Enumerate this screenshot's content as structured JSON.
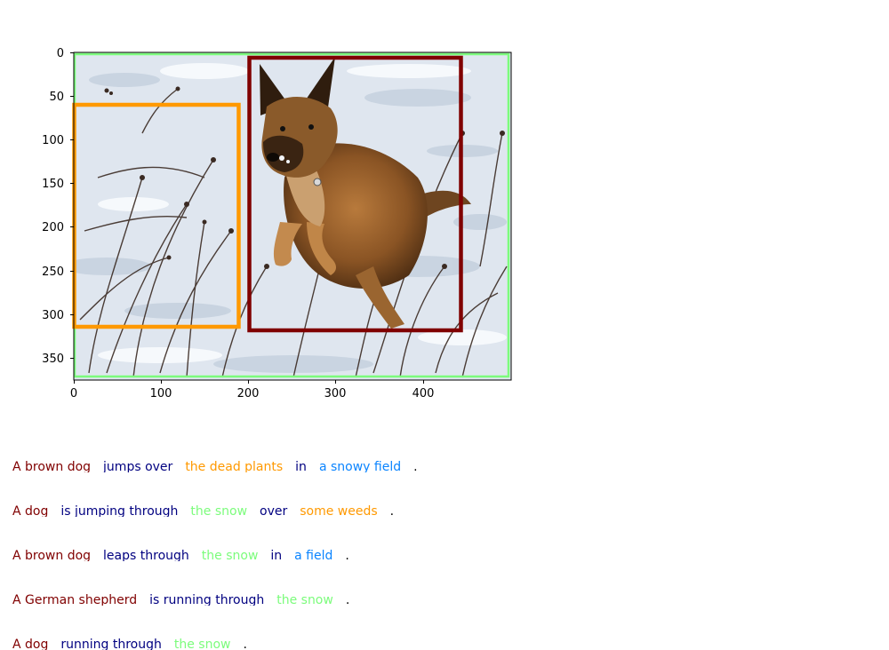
{
  "image_axes": {
    "y_ticks": [
      "0",
      "50",
      "100",
      "150",
      "200",
      "250",
      "300",
      "350"
    ],
    "x_ticks": [
      "0",
      "100",
      "200",
      "300",
      "400"
    ],
    "xlim": [
      0,
      500
    ],
    "ylim": [
      375,
      0
    ]
  },
  "photo": {
    "description_icon": "photo-dog-jumping-in-snow"
  },
  "boxes": [
    {
      "id": "box-green",
      "color": "#7CFC7C",
      "region": [
        0,
        0,
        500,
        375
      ]
    },
    {
      "id": "box-orange",
      "color": "#FF9900",
      "region": [
        0,
        60,
        188,
        315
      ]
    },
    {
      "id": "box-darkred",
      "color": "#800000",
      "region": [
        200,
        6,
        443,
        319
      ]
    }
  ],
  "captions": [
    {
      "phrases": [
        {
          "text": "A brown dog",
          "color": "#800000"
        },
        {
          "text": "jumps over",
          "color": "#000080"
        },
        {
          "text": "the dead plants",
          "color": "#FF9900"
        },
        {
          "text": "in",
          "color": "#000080"
        },
        {
          "text": "a snowy field",
          "color": "#0A84FF"
        },
        {
          "text": ".",
          "color": "#000000"
        }
      ]
    },
    {
      "phrases": [
        {
          "text": "A dog",
          "color": "#800000"
        },
        {
          "text": "is jumping through",
          "color": "#000080"
        },
        {
          "text": "the snow",
          "color": "#7CFC7C"
        },
        {
          "text": "over",
          "color": "#000080"
        },
        {
          "text": "some weeds",
          "color": "#FF9900"
        },
        {
          "text": ".",
          "color": "#000000"
        }
      ]
    },
    {
      "phrases": [
        {
          "text": "A brown dog",
          "color": "#800000"
        },
        {
          "text": "leaps through",
          "color": "#000080"
        },
        {
          "text": "the snow",
          "color": "#7CFC7C"
        },
        {
          "text": "in",
          "color": "#000080"
        },
        {
          "text": "a field",
          "color": "#0A84FF"
        },
        {
          "text": ".",
          "color": "#000000"
        }
      ]
    },
    {
      "phrases": [
        {
          "text": "A German shepherd",
          "color": "#800000"
        },
        {
          "text": "is running through",
          "color": "#000080"
        },
        {
          "text": "the snow",
          "color": "#7CFC7C"
        },
        {
          "text": ".",
          "color": "#000000"
        }
      ]
    },
    {
      "phrases": [
        {
          "text": "A dog",
          "color": "#800000"
        },
        {
          "text": "running through",
          "color": "#000080"
        },
        {
          "text": "the snow",
          "color": "#7CFC7C"
        },
        {
          "text": ".",
          "color": "#000000"
        }
      ]
    }
  ]
}
